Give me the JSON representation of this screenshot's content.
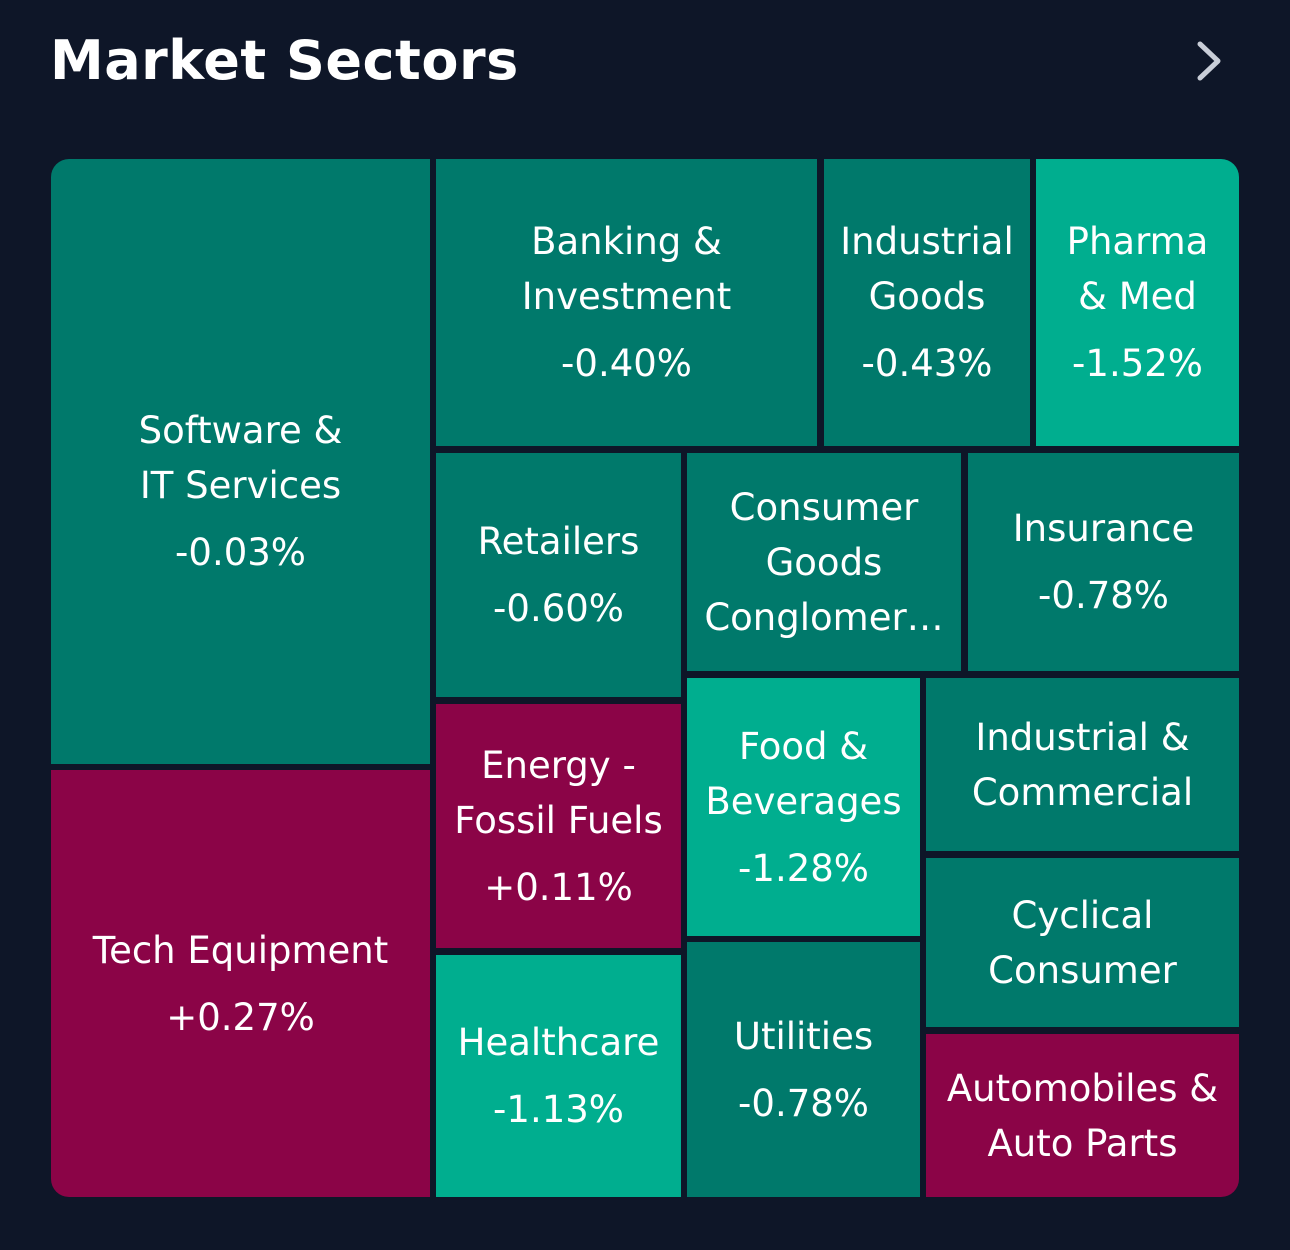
{
  "header": {
    "title": "Market Sectors",
    "more_icon": "chevron-right-icon"
  },
  "colors": {
    "background": "#0e1628",
    "mid_green": "#00796b",
    "light_green": "#00ae8f",
    "red": "#8b0447"
  },
  "sectors": [
    {
      "name": "Software &\nIT Services",
      "change": "-0.03%"
    },
    {
      "name": "Tech Equipment",
      "change": "+0.27%"
    },
    {
      "name": "Banking &\nInvestment",
      "change": "-0.40%"
    },
    {
      "name": "Industrial\nGoods",
      "change": "-0.43%"
    },
    {
      "name": "Pharma\n& Med",
      "change": "-1.52%"
    },
    {
      "name": "Retailers",
      "change": "-0.60%"
    },
    {
      "name": "Consumer\nGoods",
      "name_line2": "Conglomer…",
      "change": ""
    },
    {
      "name": "Insurance",
      "change": "-0.78%"
    },
    {
      "name": "Energy -\nFossil Fuels",
      "change": "+0.11%"
    },
    {
      "name": "Food &\nBeverages",
      "change": "-1.28%"
    },
    {
      "name": "Industrial &\nCommercial",
      "change": ""
    },
    {
      "name": "Healthcare",
      "change": "-1.13%"
    },
    {
      "name": "Utilities",
      "change": "-0.78%"
    },
    {
      "name": "Cyclical\nConsumer",
      "change": ""
    },
    {
      "name": "Automobiles &\nAuto Parts",
      "change": ""
    }
  ]
}
